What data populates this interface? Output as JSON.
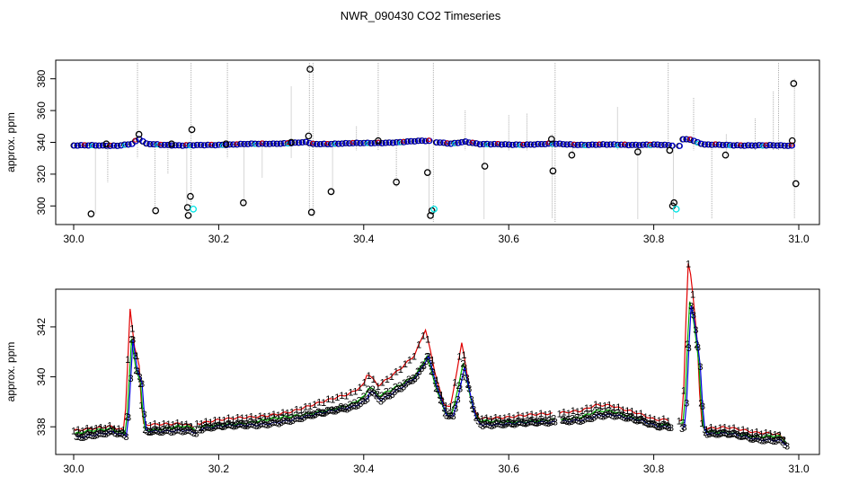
{
  "title": "NWR_090430  CO2 Timeseries",
  "colors": {
    "raw": "#000000",
    "flag": "#00e5e5",
    "vline": "#9a9a9a",
    "series1": "#e00000",
    "series2": "#00b000",
    "series3": "#0000e0"
  },
  "chart_data": [
    {
      "type": "scatter",
      "ylabel": "approx. ppm",
      "xlim": [
        30.0,
        31.0
      ],
      "ylim": [
        290,
        390
      ],
      "xticks": [
        "30.0",
        "30.2",
        "30.4",
        "30.6",
        "30.8",
        "31.0"
      ],
      "yticks": [
        "300",
        "320",
        "340",
        "360",
        "380"
      ],
      "baseline_segments": [
        {
          "x": [
            30.0,
            30.06,
            30.08,
            30.09,
            30.1,
            30.15,
            30.16,
            30.2,
            30.3,
            30.32,
            30.33
          ],
          "y": [
            338,
            338,
            339,
            342,
            339,
            338,
            338,
            338.5,
            339.5,
            340,
            339
          ]
        },
        {
          "x": [
            30.335,
            30.4,
            30.45,
            30.48,
            30.49
          ],
          "y": [
            339,
            339.5,
            340,
            341,
            341
          ]
        },
        {
          "x": [
            30.5,
            30.52,
            30.54,
            30.56,
            30.6,
            30.66,
            30.7,
            30.8,
            30.825
          ],
          "y": [
            340,
            339,
            340.5,
            339,
            338.5,
            339,
            338.5,
            338.5,
            338
          ]
        },
        {
          "x": [
            30.835,
            30.84,
            30.85,
            30.86,
            30.87,
            30.95,
            30.99
          ],
          "y": [
            338,
            342,
            342,
            340,
            338.5,
            338,
            338
          ]
        }
      ],
      "outliers": [
        {
          "x": 30.024,
          "y": 295
        },
        {
          "x": 30.045,
          "y": 339
        },
        {
          "x": 30.09,
          "y": 345
        },
        {
          "x": 30.113,
          "y": 297
        },
        {
          "x": 30.135,
          "y": 339
        },
        {
          "x": 30.157,
          "y": 299
        },
        {
          "x": 30.158,
          "y": 294
        },
        {
          "x": 30.161,
          "y": 306
        },
        {
          "x": 30.163,
          "y": 348
        },
        {
          "x": 30.21,
          "y": 339
        },
        {
          "x": 30.234,
          "y": 302
        },
        {
          "x": 30.3,
          "y": 340
        },
        {
          "x": 30.324,
          "y": 344
        },
        {
          "x": 30.326,
          "y": 386
        },
        {
          "x": 30.328,
          "y": 296
        },
        {
          "x": 30.355,
          "y": 309
        },
        {
          "x": 30.42,
          "y": 341
        },
        {
          "x": 30.445,
          "y": 315
        },
        {
          "x": 30.488,
          "y": 321
        },
        {
          "x": 30.492,
          "y": 294
        },
        {
          "x": 30.494,
          "y": 297
        },
        {
          "x": 30.567,
          "y": 325
        },
        {
          "x": 30.659,
          "y": 342
        },
        {
          "x": 30.661,
          "y": 322
        },
        {
          "x": 30.687,
          "y": 332
        },
        {
          "x": 30.778,
          "y": 334
        },
        {
          "x": 30.822,
          "y": 335
        },
        {
          "x": 30.826,
          "y": 300
        },
        {
          "x": 30.828,
          "y": 302
        },
        {
          "x": 30.899,
          "y": 332
        },
        {
          "x": 30.991,
          "y": 341
        },
        {
          "x": 30.993,
          "y": 377
        },
        {
          "x": 30.996,
          "y": 314
        }
      ],
      "flagged": [
        {
          "x": 30.165,
          "y": 298
        },
        {
          "x": 30.497,
          "y": 298
        },
        {
          "x": 30.831,
          "y": 298
        }
      ],
      "spikes": [
        {
          "x": 30.03,
          "lo": 295,
          "hi": 340
        },
        {
          "x": 30.047,
          "lo": 315,
          "hi": 338
        },
        {
          "x": 30.088,
          "lo": 330,
          "hi": 390
        },
        {
          "x": 30.112,
          "lo": 297,
          "hi": 338
        },
        {
          "x": 30.13,
          "lo": 320,
          "hi": 338
        },
        {
          "x": 30.156,
          "lo": 292,
          "hi": 340
        },
        {
          "x": 30.162,
          "lo": 300,
          "hi": 390
        },
        {
          "x": 30.212,
          "lo": 330,
          "hi": 390
        },
        {
          "x": 30.235,
          "lo": 300,
          "hi": 340
        },
        {
          "x": 30.26,
          "lo": 318,
          "hi": 340
        },
        {
          "x": 30.3,
          "lo": 330,
          "hi": 375
        },
        {
          "x": 30.325,
          "lo": 296,
          "hi": 390
        },
        {
          "x": 30.33,
          "lo": 293,
          "hi": 390
        },
        {
          "x": 30.357,
          "lo": 308,
          "hi": 340
        },
        {
          "x": 30.39,
          "lo": 335,
          "hi": 350
        },
        {
          "x": 30.42,
          "lo": 335,
          "hi": 390
        },
        {
          "x": 30.445,
          "lo": 312,
          "hi": 342
        },
        {
          "x": 30.49,
          "lo": 293,
          "hi": 340
        },
        {
          "x": 30.496,
          "lo": 290,
          "hi": 390
        },
        {
          "x": 30.54,
          "lo": 335,
          "hi": 360
        },
        {
          "x": 30.566,
          "lo": 292,
          "hi": 340
        },
        {
          "x": 30.6,
          "lo": 335,
          "hi": 357
        },
        {
          "x": 30.625,
          "lo": 335,
          "hi": 358
        },
        {
          "x": 30.66,
          "lo": 292,
          "hi": 345
        },
        {
          "x": 30.664,
          "lo": 290,
          "hi": 390
        },
        {
          "x": 30.688,
          "lo": 330,
          "hi": 340
        },
        {
          "x": 30.75,
          "lo": 335,
          "hi": 362
        },
        {
          "x": 30.778,
          "lo": 292,
          "hi": 340
        },
        {
          "x": 30.82,
          "lo": 335,
          "hi": 390
        },
        {
          "x": 30.827,
          "lo": 292,
          "hi": 340
        },
        {
          "x": 30.855,
          "lo": 335,
          "hi": 368
        },
        {
          "x": 30.88,
          "lo": 292,
          "hi": 338
        },
        {
          "x": 30.9,
          "lo": 330,
          "hi": 345
        },
        {
          "x": 30.94,
          "lo": 335,
          "hi": 355
        },
        {
          "x": 30.965,
          "lo": 335,
          "hi": 372
        },
        {
          "x": 30.972,
          "lo": 335,
          "hi": 390
        },
        {
          "x": 30.994,
          "lo": 292,
          "hi": 380
        }
      ]
    },
    {
      "type": "line",
      "ylabel": "approx. ppm",
      "xlim": [
        30.0,
        31.0
      ],
      "ylim": [
        337.0,
        343.4
      ],
      "xticks": [
        "30.0",
        "30.2",
        "30.4",
        "30.6",
        "30.8",
        "31.0"
      ],
      "yticks": [
        "338",
        "340",
        "342"
      ],
      "series": [
        {
          "name": "1",
          "offset": 0.25,
          "shift": 0.0
        },
        {
          "name": "2",
          "offset": 0.1,
          "shift": 0.002
        },
        {
          "name": "3",
          "offset": 0.0,
          "shift": 0.004
        }
      ],
      "segments": [
        {
          "x": [
            30.0,
            30.02,
            30.05,
            30.07,
            30.078,
            30.083,
            30.09,
            30.095,
            30.11,
            30.15,
            30.165
          ],
          "y": [
            337.6,
            337.7,
            337.8,
            337.6,
            341.5,
            340.3,
            339.8,
            337.8,
            337.8,
            337.9,
            337.8
          ]
        },
        {
          "x": [
            30.17,
            30.2,
            30.25,
            30.3,
            30.35,
            30.38,
            30.4,
            30.405,
            30.42,
            30.45,
            30.47,
            30.48,
            30.485,
            30.49,
            30.5,
            30.51,
            30.52,
            30.535,
            30.54,
            30.55,
            30.56,
            30.6,
            30.66
          ],
          "y": [
            337.9,
            338.0,
            338.1,
            338.3,
            338.6,
            338.8,
            339.1,
            339.5,
            339.1,
            339.6,
            340.0,
            340.5,
            340.8,
            340.3,
            339.3,
            338.5,
            338.4,
            340.4,
            339.8,
            338.4,
            338.1,
            338.1,
            338.2
          ]
        },
        {
          "x": [
            30.67,
            30.7,
            30.72,
            30.74,
            30.78,
            30.8,
            30.82
          ],
          "y": [
            338.2,
            338.3,
            338.5,
            338.5,
            338.2,
            338.0,
            338.0
          ]
        },
        {
          "x": [
            30.835,
            30.84,
            30.847,
            30.852,
            30.86,
            30.865,
            30.87,
            30.9,
            30.94,
            30.97,
            30.98
          ],
          "y": [
            338.0,
            338.1,
            342.9,
            342.4,
            340.5,
            338.0,
            337.7,
            337.7,
            337.5,
            337.5,
            337.3
          ]
        }
      ]
    }
  ]
}
